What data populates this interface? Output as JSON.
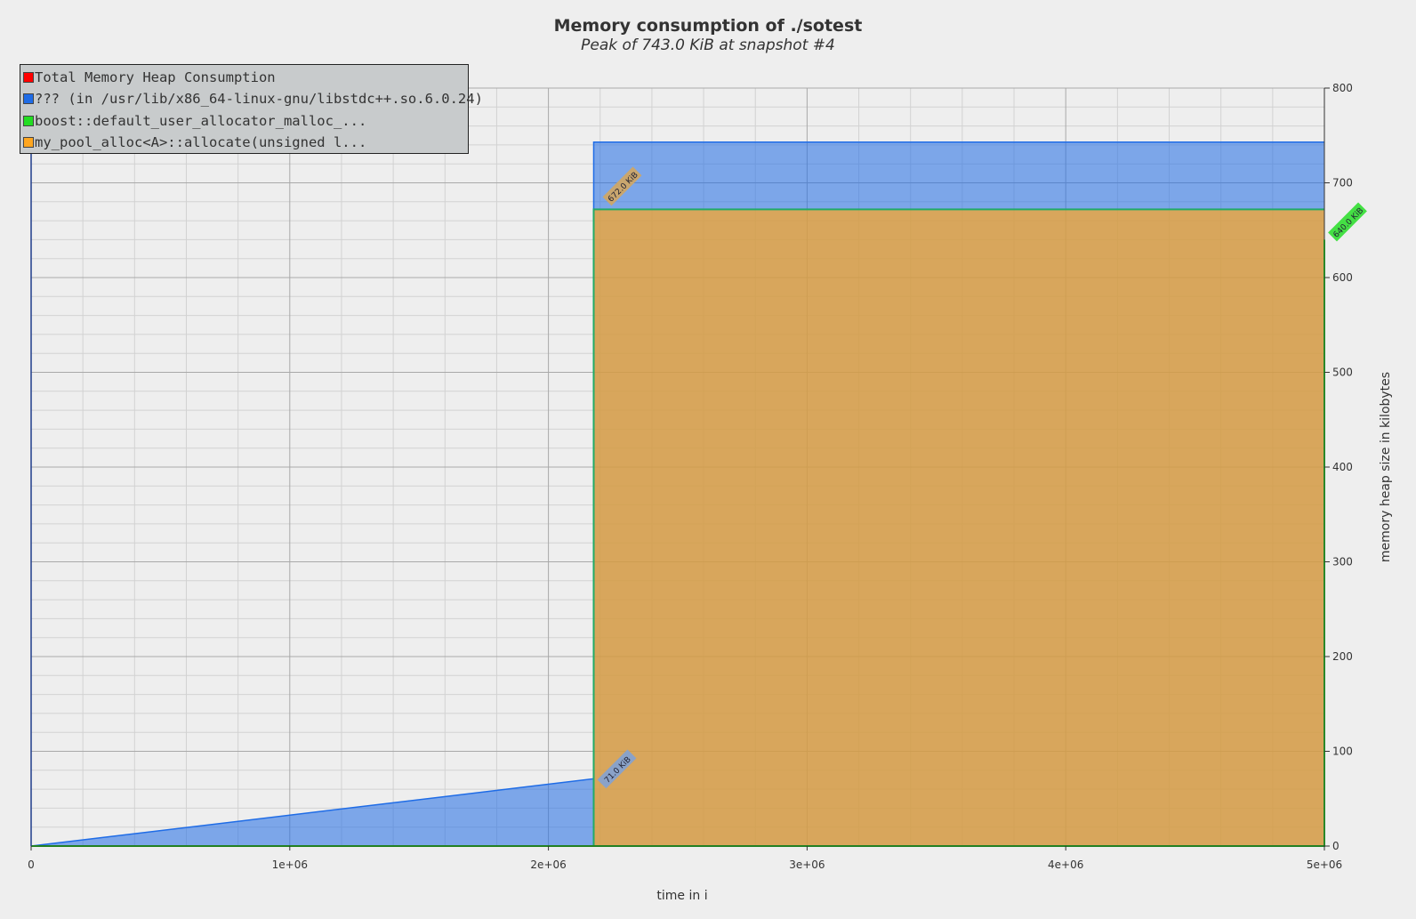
{
  "chart_data": {
    "type": "area",
    "title": "Memory consumption of ./sotest",
    "subtitle": "Peak of 743.0 KiB at snapshot #4",
    "xlabel": "time in i",
    "ylabel": "memory heap size in kilobytes",
    "xlim": [
      0,
      5000000
    ],
    "ylim": [
      0,
      800
    ],
    "x_ticks": [
      "0",
      "1e+06",
      "2e+06",
      "3e+06",
      "4e+06",
      "5e+06"
    ],
    "y_ticks": [
      "0",
      "100",
      "200",
      "300",
      "400",
      "500",
      "600",
      "700",
      "800"
    ],
    "grid": true,
    "legend_position": "top-left",
    "series": [
      {
        "name": "Total Memory Heap Consumption",
        "color": "#ff0000",
        "x": [
          0,
          2175000,
          2175000,
          5000000
        ],
        "y": [
          0,
          71,
          743,
          743
        ]
      },
      {
        "name": "??? (in /usr/lib/x86_64-linux-gnu/libstdc++.so.6.0.24)",
        "color": "#1f6ce6",
        "x": [
          0,
          2175000,
          2175000,
          5000000
        ],
        "y": [
          0,
          71,
          71,
          71
        ]
      },
      {
        "name": "boost::default_user_allocator_malloc_...",
        "color": "#22dd22",
        "x": [
          0,
          2175000,
          2175000,
          5000000,
          5000000
        ],
        "y": [
          0,
          0,
          0,
          0,
          640
        ]
      },
      {
        "name": "my_pool_alloc<A>::allocate(unsigned l...",
        "color": "#ffa61f",
        "x": [
          0,
          2175000,
          2175000,
          5000000
        ],
        "y": [
          0,
          0,
          672,
          672
        ]
      }
    ],
    "annotations": [
      {
        "text": "71.0 KiB",
        "x": 2175000,
        "y": 71,
        "color": "#8aa2c8"
      },
      {
        "text": "672.0 KiB",
        "x": 2175000,
        "y": 672,
        "color": "#c9a66e"
      },
      {
        "text": "640.0 KiB",
        "x": 5000000,
        "y": 640,
        "color": "#44e044"
      }
    ]
  }
}
